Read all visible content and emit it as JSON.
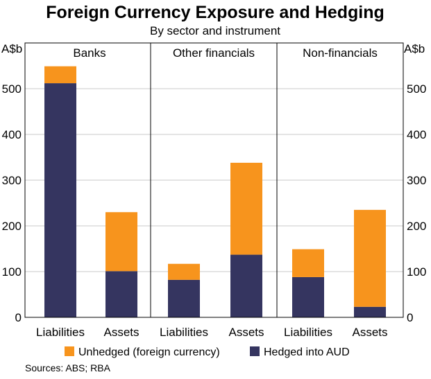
{
  "chart_data": {
    "type": "bar",
    "stacked": true,
    "title": "Foreign Currency Exposure and Hedging",
    "subtitle": "By sector and instrument",
    "ylabel_left": "A$b",
    "ylabel_right": "A$b",
    "ylim": [
      0,
      600
    ],
    "yticks": [
      0,
      100,
      200,
      300,
      400,
      500
    ],
    "grid": true,
    "panels": [
      "Banks",
      "Other financials",
      "Non-financials"
    ],
    "categories": [
      "Liabilities",
      "Assets",
      "Liabilities",
      "Assets",
      "Liabilities",
      "Assets"
    ],
    "series": [
      {
        "name": "Hedged into AUD",
        "color": "#353560",
        "values": [
          512,
          101,
          82,
          137,
          88,
          23
        ]
      },
      {
        "name": "Unhedged (foreign currency)",
        "color": "#f7941d",
        "values": [
          37,
          129,
          35,
          201,
          61,
          212
        ]
      }
    ],
    "legend": [
      "Unhedged (foreign currency)",
      "Hedged into AUD"
    ],
    "legend_colors": [
      "#f7941d",
      "#353560"
    ],
    "source": "Sources: ABS; RBA"
  }
}
